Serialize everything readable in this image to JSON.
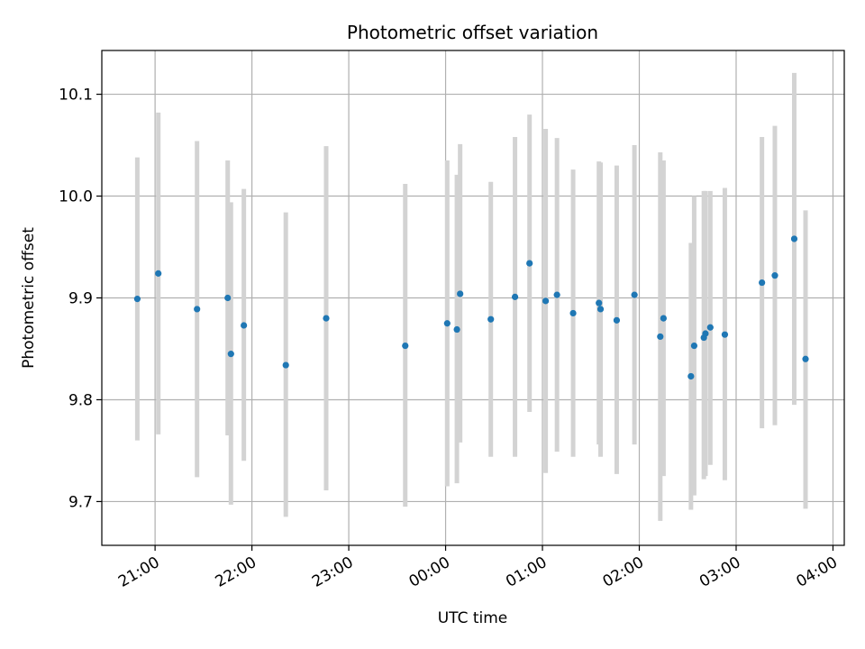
{
  "chart_data": {
    "type": "scatter",
    "title": "Photometric offset variation",
    "xlabel": "UTC time",
    "ylabel": "Photometric offset",
    "xlim": [
      "20:27",
      "04:07"
    ],
    "ylim": [
      9.657,
      10.143
    ],
    "x_ticks": [
      "21:00",
      "22:00",
      "23:00",
      "00:00",
      "01:00",
      "02:00",
      "03:00",
      "04:00"
    ],
    "y_ticks": [
      9.7,
      9.8,
      9.9,
      10.0,
      10.1
    ],
    "y_tick_labels": [
      "9.7",
      "9.8",
      "9.9",
      "10.0",
      "10.1"
    ],
    "grid": true,
    "colors": {
      "point": "#1f77b4",
      "errorbar": "#d3d3d3",
      "grid": "#b0b0b0"
    },
    "points": [
      {
        "time": "20:49",
        "y": 9.899,
        "lo": 9.76,
        "hi": 10.038
      },
      {
        "time": "21:02",
        "y": 9.924,
        "lo": 9.766,
        "hi": 10.082
      },
      {
        "time": "21:26",
        "y": 9.889,
        "lo": 9.724,
        "hi": 10.054
      },
      {
        "time": "21:45",
        "y": 9.9,
        "lo": 9.765,
        "hi": 10.035
      },
      {
        "time": "21:47",
        "y": 9.845,
        "lo": 9.697,
        "hi": 9.994
      },
      {
        "time": "21:55",
        "y": 9.873,
        "lo": 9.74,
        "hi": 10.007
      },
      {
        "time": "22:21",
        "y": 9.834,
        "lo": 9.685,
        "hi": 9.984
      },
      {
        "time": "22:46",
        "y": 9.88,
        "lo": 9.711,
        "hi": 10.049
      },
      {
        "time": "23:35",
        "y": 9.853,
        "lo": 9.695,
        "hi": 10.012
      },
      {
        "time": "00:01",
        "y": 9.875,
        "lo": 9.715,
        "hi": 10.035
      },
      {
        "time": "00:07",
        "y": 9.869,
        "lo": 9.718,
        "hi": 10.021
      },
      {
        "time": "00:09",
        "y": 9.904,
        "lo": 9.758,
        "hi": 10.051
      },
      {
        "time": "00:28",
        "y": 9.879,
        "lo": 9.744,
        "hi": 10.014
      },
      {
        "time": "00:43",
        "y": 9.901,
        "lo": 9.744,
        "hi": 10.058
      },
      {
        "time": "00:52",
        "y": 9.934,
        "lo": 9.788,
        "hi": 10.08
      },
      {
        "time": "01:02",
        "y": 9.897,
        "lo": 9.728,
        "hi": 10.066
      },
      {
        "time": "01:09",
        "y": 9.903,
        "lo": 9.749,
        "hi": 10.057
      },
      {
        "time": "01:19",
        "y": 9.885,
        "lo": 9.744,
        "hi": 10.026
      },
      {
        "time": "01:35",
        "y": 9.895,
        "lo": 9.756,
        "hi": 10.034
      },
      {
        "time": "01:36",
        "y": 9.889,
        "lo": 9.744,
        "hi": 10.033
      },
      {
        "time": "01:46",
        "y": 9.878,
        "lo": 9.727,
        "hi": 10.03
      },
      {
        "time": "01:57",
        "y": 9.903,
        "lo": 9.756,
        "hi": 10.05
      },
      {
        "time": "02:13",
        "y": 9.862,
        "lo": 9.681,
        "hi": 10.043
      },
      {
        "time": "02:15",
        "y": 9.88,
        "lo": 9.725,
        "hi": 10.035
      },
      {
        "time": "02:32",
        "y": 9.823,
        "lo": 9.692,
        "hi": 9.954
      },
      {
        "time": "02:34",
        "y": 9.853,
        "lo": 9.706,
        "hi": 10.0
      },
      {
        "time": "02:40",
        "y": 9.861,
        "lo": 9.722,
        "hi": 10.005
      },
      {
        "time": "02:41",
        "y": 9.865,
        "lo": 9.725,
        "hi": 10.005
      },
      {
        "time": "02:44",
        "y": 9.871,
        "lo": 9.736,
        "hi": 10.005
      },
      {
        "time": "02:53",
        "y": 9.864,
        "lo": 9.721,
        "hi": 10.008
      },
      {
        "time": "03:16",
        "y": 9.915,
        "lo": 9.772,
        "hi": 10.058
      },
      {
        "time": "03:24",
        "y": 9.922,
        "lo": 9.775,
        "hi": 10.069
      },
      {
        "time": "03:36",
        "y": 9.958,
        "lo": 9.795,
        "hi": 10.121
      },
      {
        "time": "03:43",
        "y": 9.84,
        "lo": 9.693,
        "hi": 9.986
      }
    ]
  }
}
